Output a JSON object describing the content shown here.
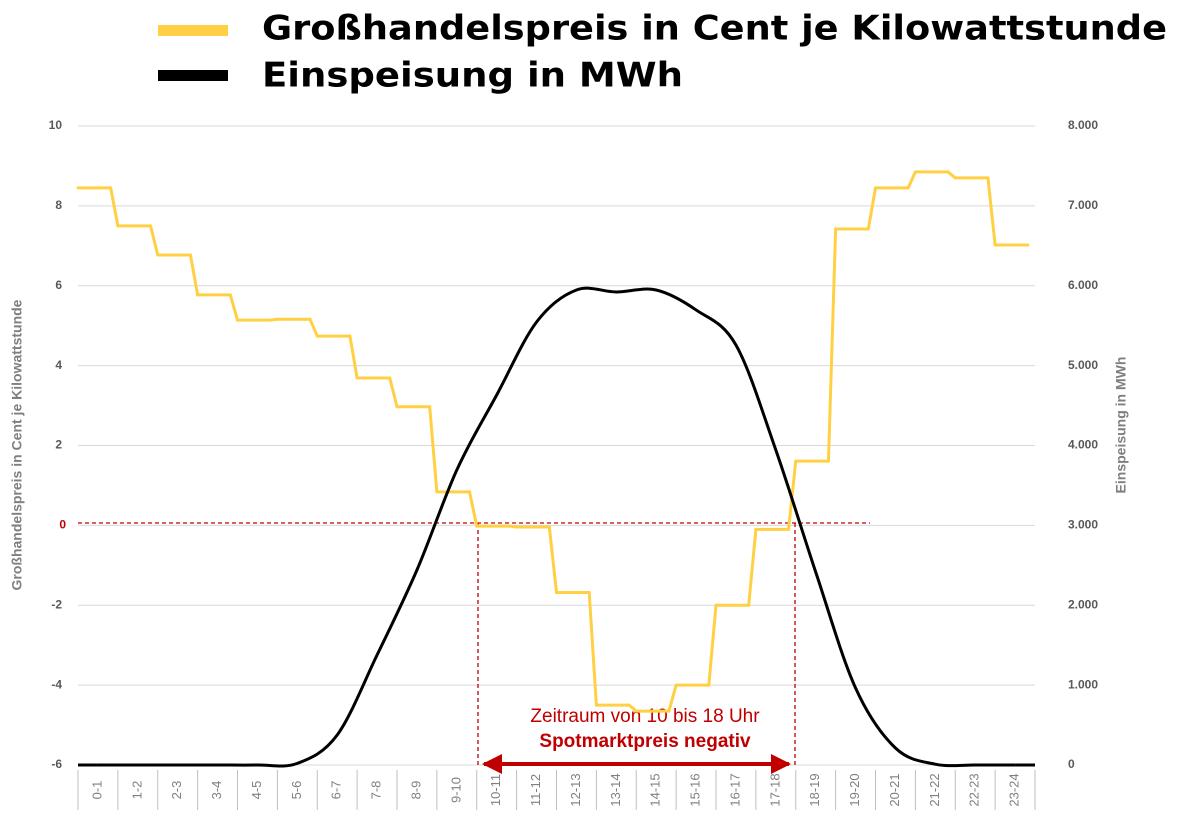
{
  "chart_data": {
    "type": "line",
    "categories": [
      "0-1",
      "1-2",
      "2-3",
      "3-4",
      "4-5",
      "5-6",
      "6-7",
      "7-8",
      "8-9",
      "9-10",
      "10-11",
      "11-12",
      "12-13",
      "13-14",
      "14-15",
      "15-16",
      "16-17",
      "17-18",
      "18-19",
      "19-20",
      "20-21",
      "21-22",
      "22-23",
      "23-24"
    ],
    "series": [
      {
        "name": "Großhandelspreis in Cent je Kilowattstunde",
        "color": "#ffd044",
        "step": true,
        "values": [
          8.45,
          7.5,
          6.77,
          5.77,
          5.14,
          5.16,
          4.74,
          3.69,
          2.97,
          0.84,
          -0.02,
          -0.04,
          -1.68,
          -4.5,
          -4.65,
          -4.0,
          -2.0,
          -0.1,
          1.61,
          7.42,
          8.45,
          8.85,
          8.7,
          7.02
        ]
      },
      {
        "name": "Einspeisung in MWh",
        "color": "#000000",
        "axis": "y2",
        "values": [
          0,
          0,
          0,
          0,
          0,
          20,
          375,
          1377,
          2441,
          3693,
          4632,
          5546,
          5947,
          5922,
          5947,
          5697,
          5258,
          3944,
          2416,
          964,
          213,
          10,
          0,
          0
        ]
      }
    ],
    "ylabel": "Großhandelspreis in Cent je Kilowattstunde",
    "y2label": "Einspeisung in MWh",
    "ylim": [
      -6,
      10
    ],
    "yticks": [
      -6,
      -4,
      -2,
      0,
      2,
      4,
      6,
      8,
      10
    ],
    "y2lim": [
      0,
      8000
    ],
    "y2ticks": [
      0,
      {
        "value": 1000,
        "label": "1.000"
      },
      {
        "value": 2000,
        "label": "2.000"
      },
      {
        "value": 3000,
        "label": "3.000"
      },
      {
        "value": 4000,
        "label": "4.000"
      },
      {
        "value": 5000,
        "label": "5.000"
      },
      {
        "value": 6000,
        "label": "6.000"
      },
      {
        "value": 7000,
        "label": "7.000"
      },
      {
        "value": 8000,
        "label": "8.000"
      }
    ],
    "grid": true,
    "annotations": [
      "Zeitraum von 10 bis 18 Uhr",
      "Spotmarktpreis negativ"
    ]
  }
}
